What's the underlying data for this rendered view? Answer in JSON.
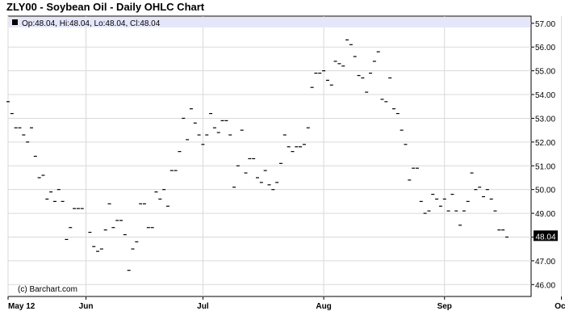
{
  "title": "ZLY00 - Soybean Oil - Daily OHLC Chart",
  "legend": {
    "op": "Op:48.04",
    "hi": "Hi:48.04",
    "lo": "Lo:48.04",
    "cl": "Cl:48.04"
  },
  "credit": "(c) Barchart.com",
  "colors": {
    "legend_bg": "#e6e6fa",
    "grid": "#d9d9d9",
    "bar": "#000000",
    "last_price_bg": "#000000"
  },
  "chart_data": {
    "type": "ohlc",
    "title": "ZLY00 - Soybean Oil - Daily OHLC Chart",
    "x_labels": [
      {
        "label": "May 12",
        "day": 0
      },
      {
        "label": "Jun",
        "day": 20
      },
      {
        "label": "Jul",
        "day": 50
      },
      {
        "label": "Aug",
        "day": 81
      },
      {
        "label": "Sep",
        "day": 112
      },
      {
        "label": "Oct",
        "day": 142
      }
    ],
    "ylim": [
      45.5,
      57.3
    ],
    "yticks": [
      "46.00",
      "47.00",
      "48.00",
      "49.00",
      "50.00",
      "51.00",
      "52.00",
      "53.00",
      "54.00",
      "55.00",
      "56.00",
      "57.00"
    ],
    "last_price": "48.04",
    "grid": true,
    "points": [
      [
        0,
        53.7
      ],
      [
        1,
        53.2
      ],
      [
        2,
        52.6
      ],
      [
        3,
        52.6
      ],
      [
        4,
        52.3
      ],
      [
        5,
        52.0
      ],
      [
        6,
        52.6
      ],
      [
        7,
        51.4
      ],
      [
        8,
        50.5
      ],
      [
        9,
        50.6
      ],
      [
        10,
        49.6
      ],
      [
        11,
        49.9
      ],
      [
        12,
        49.5
      ],
      [
        13,
        50.0
      ],
      [
        14,
        49.5
      ],
      [
        15,
        47.9
      ],
      [
        16,
        48.4
      ],
      [
        17,
        49.2
      ],
      [
        18,
        49.2
      ],
      [
        19,
        49.2
      ],
      [
        21,
        48.2
      ],
      [
        22,
        47.6
      ],
      [
        23,
        47.4
      ],
      [
        24,
        47.5
      ],
      [
        25,
        48.3
      ],
      [
        26,
        49.4
      ],
      [
        27,
        48.4
      ],
      [
        28,
        48.7
      ],
      [
        29,
        48.7
      ],
      [
        30,
        48.1
      ],
      [
        31,
        46.6
      ],
      [
        32,
        47.5
      ],
      [
        33,
        47.8
      ],
      [
        34,
        49.4
      ],
      [
        35,
        49.4
      ],
      [
        36,
        48.4
      ],
      [
        37,
        48.4
      ],
      [
        38,
        49.9
      ],
      [
        39,
        49.6
      ],
      [
        40,
        50.0
      ],
      [
        41,
        49.3
      ],
      [
        42,
        50.8
      ],
      [
        43,
        50.8
      ],
      [
        44,
        51.6
      ],
      [
        45,
        53.0
      ],
      [
        46,
        52.1
      ],
      [
        47,
        53.4
      ],
      [
        48,
        52.8
      ],
      [
        49,
        52.3
      ],
      [
        50,
        51.9
      ],
      [
        51,
        52.3
      ],
      [
        52,
        53.2
      ],
      [
        53,
        52.6
      ],
      [
        54,
        52.4
      ],
      [
        55,
        52.9
      ],
      [
        56,
        52.9
      ],
      [
        57,
        52.3
      ],
      [
        58,
        50.1
      ],
      [
        59,
        51.0
      ],
      [
        60,
        52.5
      ],
      [
        61,
        50.7
      ],
      [
        62,
        51.3
      ],
      [
        63,
        51.3
      ],
      [
        64,
        50.5
      ],
      [
        65,
        50.3
      ],
      [
        66,
        50.8
      ],
      [
        67,
        50.2
      ],
      [
        68,
        50.0
      ],
      [
        69,
        50.3
      ],
      [
        70,
        51.1
      ],
      [
        71,
        52.3
      ],
      [
        72,
        51.8
      ],
      [
        73,
        51.6
      ],
      [
        74,
        51.8
      ],
      [
        75,
        51.8
      ],
      [
        76,
        51.9
      ],
      [
        77,
        52.6
      ],
      [
        78,
        54.3
      ],
      [
        79,
        54.9
      ],
      [
        80,
        54.9
      ],
      [
        81,
        55.0
      ],
      [
        82,
        54.6
      ],
      [
        83,
        54.4
      ],
      [
        84,
        55.4
      ],
      [
        85,
        55.3
      ],
      [
        86,
        55.2
      ],
      [
        87,
        56.3
      ],
      [
        88,
        56.1
      ],
      [
        89,
        55.6
      ],
      [
        90,
        54.8
      ],
      [
        91,
        54.7
      ],
      [
        92,
        54.1
      ],
      [
        93,
        54.9
      ],
      [
        94,
        55.4
      ],
      [
        95,
        55.8
      ],
      [
        96,
        53.8
      ],
      [
        97,
        53.7
      ],
      [
        98,
        54.7
      ],
      [
        99,
        53.4
      ],
      [
        100,
        53.2
      ],
      [
        101,
        52.5
      ],
      [
        102,
        51.9
      ],
      [
        103,
        50.4
      ],
      [
        104,
        50.9
      ],
      [
        105,
        50.9
      ],
      [
        106,
        49.5
      ],
      [
        107,
        49.0
      ],
      [
        108,
        49.1
      ],
      [
        109,
        49.8
      ],
      [
        110,
        49.6
      ],
      [
        111,
        49.3
      ],
      [
        112,
        49.6
      ],
      [
        113,
        49.1
      ],
      [
        114,
        49.8
      ],
      [
        115,
        49.1
      ],
      [
        116,
        48.5
      ],
      [
        117,
        49.1
      ],
      [
        118,
        49.5
      ],
      [
        119,
        50.7
      ],
      [
        120,
        50.0
      ],
      [
        121,
        50.1
      ],
      [
        122,
        49.7
      ],
      [
        123,
        50.0
      ],
      [
        124,
        49.6
      ],
      [
        125,
        49.1
      ],
      [
        126,
        48.3
      ],
      [
        127,
        48.3
      ],
      [
        128,
        48.0
      ]
    ]
  }
}
